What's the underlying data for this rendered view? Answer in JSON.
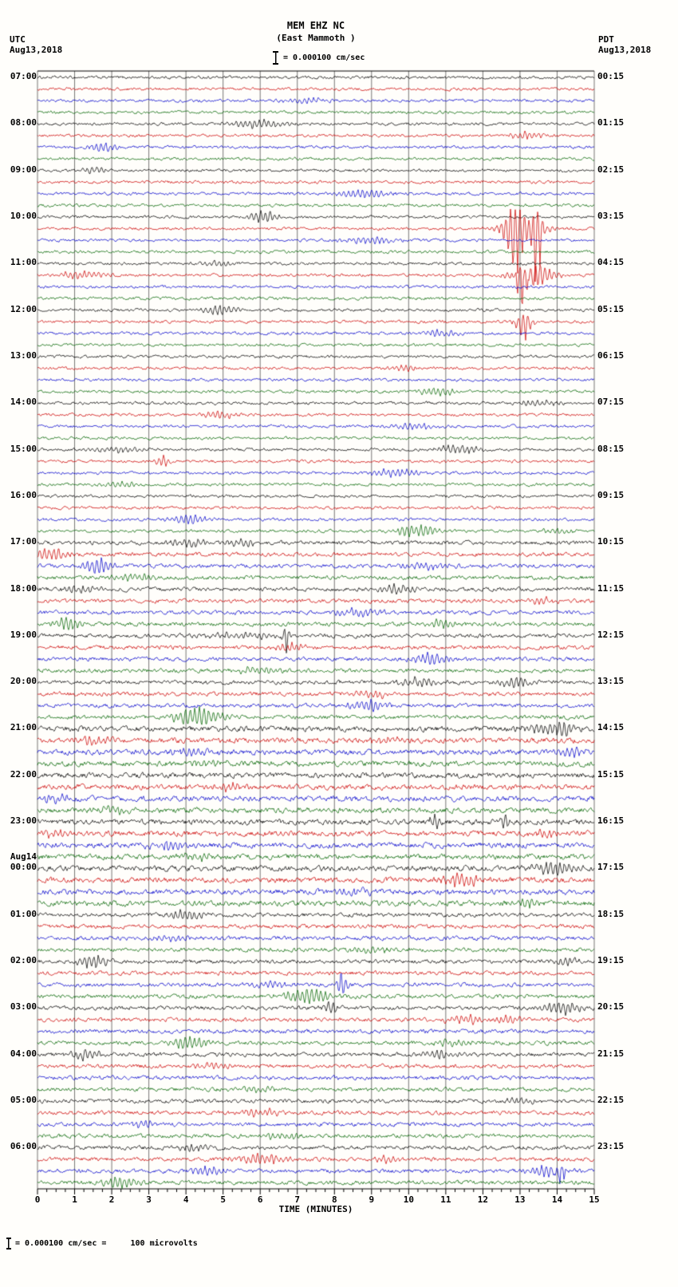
{
  "title": {
    "line1": "MEM EHZ NC",
    "line2": "(East Mammoth )"
  },
  "scale_note": "= 0.000100 cm/sec",
  "headers": {
    "left": {
      "tz": "UTC",
      "date": "Aug13,2018"
    },
    "right": {
      "tz": "PDT",
      "date": "Aug13,2018"
    }
  },
  "x_axis": {
    "label": "TIME (MINUTES)",
    "ticks": [
      "0",
      "1",
      "2",
      "3",
      "4",
      "5",
      "6",
      "7",
      "8",
      "9",
      "10",
      "11",
      "12",
      "13",
      "14",
      "15"
    ]
  },
  "footer": {
    "text": "= 0.000100 cm/sec =     100 microvolts"
  },
  "chart_data": {
    "type": "line",
    "kind": "seismogram-helicorder",
    "station": "MEM",
    "channel": "EHZ",
    "network": "NC",
    "site_name": "East Mammoth",
    "minutes_per_line": 15,
    "x_range_minutes": [
      0,
      15
    ],
    "rows": 96,
    "trace_colors_cycle": [
      "#000000",
      "#cc0000",
      "#0000cc",
      "#006600"
    ],
    "grid_color": "#3c3c3c",
    "utc_hour_labels": [
      "07:00",
      "08:00",
      "09:00",
      "10:00",
      "11:00",
      "12:00",
      "13:00",
      "14:00",
      "15:00",
      "16:00",
      "17:00",
      "18:00",
      "19:00",
      "20:00",
      "21:00",
      "22:00",
      "23:00",
      "00:00",
      "01:00",
      "02:00",
      "03:00",
      "04:00",
      "05:00",
      "06:00"
    ],
    "pdt_labels": [
      "00:15",
      "01:15",
      "02:15",
      "03:15",
      "04:15",
      "05:15",
      "06:15",
      "07:15",
      "08:15",
      "09:15",
      "10:15",
      "11:15",
      "12:15",
      "13:15",
      "14:15",
      "15:15",
      "16:15",
      "17:15",
      "18:15",
      "19:15",
      "20:15",
      "21:15",
      "22:15",
      "23:15"
    ],
    "date_change": {
      "label": "Aug14",
      "hour_index": 17
    },
    "noise_profile": [
      {
        "from": 0,
        "to": 39,
        "amp": 1.1
      },
      {
        "from": 40,
        "to": 55,
        "amp": 1.5
      },
      {
        "from": 56,
        "to": 71,
        "amp": 2.0
      },
      {
        "from": 72,
        "to": 95,
        "amp": 1.5
      }
    ],
    "events": [
      {
        "row": 2,
        "m": 7.2,
        "w": 0.4,
        "a": 4
      },
      {
        "row": 4,
        "m": 5.9,
        "w": 0.5,
        "a": 6
      },
      {
        "row": 5,
        "m": 13.2,
        "w": 0.35,
        "a": 5
      },
      {
        "row": 6,
        "m": 1.8,
        "w": 0.3,
        "a": 6
      },
      {
        "row": 8,
        "m": 1.6,
        "w": 0.3,
        "a": 4
      },
      {
        "row": 10,
        "m": 8.8,
        "w": 0.5,
        "a": 5
      },
      {
        "row": 12,
        "m": 6.1,
        "w": 0.25,
        "a": 9
      },
      {
        "row": 13,
        "m": 12.85,
        "w": 0.15,
        "a": 62
      },
      {
        "row": 13,
        "m": 13.45,
        "w": 0.1,
        "a": 78
      },
      {
        "row": 13,
        "m": 13.1,
        "w": 0.5,
        "a": 12
      },
      {
        "row": 14,
        "m": 8.9,
        "w": 0.5,
        "a": 5
      },
      {
        "row": 16,
        "m": 4.8,
        "w": 0.3,
        "a": 4
      },
      {
        "row": 17,
        "m": 1.2,
        "w": 0.5,
        "a": 5
      },
      {
        "row": 17,
        "m": 13.05,
        "w": 0.12,
        "a": 60
      },
      {
        "row": 17,
        "m": 13.35,
        "w": 0.4,
        "a": 16
      },
      {
        "row": 20,
        "m": 4.9,
        "w": 0.3,
        "a": 7
      },
      {
        "row": 21,
        "m": 13.1,
        "w": 0.15,
        "a": 26
      },
      {
        "row": 22,
        "m": 10.8,
        "w": 0.4,
        "a": 4
      },
      {
        "row": 25,
        "m": 9.9,
        "w": 0.3,
        "a": 4
      },
      {
        "row": 27,
        "m": 10.8,
        "w": 0.4,
        "a": 5
      },
      {
        "row": 28,
        "m": 13.5,
        "w": 0.4,
        "a": 4
      },
      {
        "row": 29,
        "m": 4.9,
        "w": 0.35,
        "a": 5
      },
      {
        "row": 30,
        "m": 10.1,
        "w": 0.5,
        "a": 4
      },
      {
        "row": 32,
        "m": 2.1,
        "w": 0.5,
        "a": 4
      },
      {
        "row": 32,
        "m": 11.3,
        "w": 0.4,
        "a": 6
      },
      {
        "row": 33,
        "m": 3.4,
        "w": 0.15,
        "a": 7
      },
      {
        "row": 34,
        "m": 9.6,
        "w": 0.5,
        "a": 5
      },
      {
        "row": 35,
        "m": 2.2,
        "w": 0.4,
        "a": 4
      },
      {
        "row": 38,
        "m": 4.1,
        "w": 0.4,
        "a": 6
      },
      {
        "row": 39,
        "m": 10.2,
        "w": 0.4,
        "a": 8
      },
      {
        "row": 39,
        "m": 14.0,
        "w": 0.3,
        "a": 4
      },
      {
        "row": 40,
        "m": 4.1,
        "w": 0.4,
        "a": 5
      },
      {
        "row": 40,
        "m": 5.5,
        "w": 0.3,
        "a": 5
      },
      {
        "row": 41,
        "m": 0.35,
        "w": 0.3,
        "a": 8
      },
      {
        "row": 42,
        "m": 1.65,
        "w": 0.25,
        "a": 11
      },
      {
        "row": 42,
        "m": 10.4,
        "w": 0.5,
        "a": 4
      },
      {
        "row": 43,
        "m": 2.7,
        "w": 0.4,
        "a": 5
      },
      {
        "row": 44,
        "m": 1.2,
        "w": 0.3,
        "a": 6
      },
      {
        "row": 44,
        "m": 9.7,
        "w": 0.3,
        "a": 6
      },
      {
        "row": 45,
        "m": 13.7,
        "w": 0.4,
        "a": 4
      },
      {
        "row": 46,
        "m": 8.6,
        "w": 0.5,
        "a": 5
      },
      {
        "row": 47,
        "m": 0.8,
        "w": 0.25,
        "a": 9
      },
      {
        "row": 47,
        "m": 10.9,
        "w": 0.3,
        "a": 6
      },
      {
        "row": 48,
        "m": 5.4,
        "w": 0.8,
        "a": 4
      },
      {
        "row": 48,
        "m": 6.7,
        "w": 0.07,
        "a": 28
      },
      {
        "row": 49,
        "m": 6.8,
        "w": 0.3,
        "a": 5
      },
      {
        "row": 50,
        "m": 10.6,
        "w": 0.4,
        "a": 7
      },
      {
        "row": 51,
        "m": 5.9,
        "w": 0.4,
        "a": 5
      },
      {
        "row": 52,
        "m": 10.3,
        "w": 0.4,
        "a": 6
      },
      {
        "row": 52,
        "m": 12.9,
        "w": 0.3,
        "a": 7
      },
      {
        "row": 53,
        "m": 9.0,
        "w": 0.4,
        "a": 5
      },
      {
        "row": 54,
        "m": 8.9,
        "w": 0.35,
        "a": 8
      },
      {
        "row": 55,
        "m": 4.3,
        "w": 0.45,
        "a": 13
      },
      {
        "row": 56,
        "m": 13.4,
        "w": 0.3,
        "a": 5
      },
      {
        "row": 56,
        "m": 14.15,
        "w": 0.25,
        "a": 11
      },
      {
        "row": 57,
        "m": 1.5,
        "w": 0.3,
        "a": 6
      },
      {
        "row": 57,
        "m": 9.3,
        "w": 0.35,
        "a": 5
      },
      {
        "row": 58,
        "m": 4.2,
        "w": 0.4,
        "a": 5
      },
      {
        "row": 58,
        "m": 14.4,
        "w": 0.25,
        "a": 6
      },
      {
        "row": 59,
        "m": 4.5,
        "w": 0.4,
        "a": 4
      },
      {
        "row": 61,
        "m": 5.2,
        "w": 0.3,
        "a": 5
      },
      {
        "row": 62,
        "m": 0.5,
        "w": 0.3,
        "a": 6
      },
      {
        "row": 63,
        "m": 2.0,
        "w": 0.4,
        "a": 4
      },
      {
        "row": 64,
        "m": 10.7,
        "w": 0.08,
        "a": 14
      },
      {
        "row": 64,
        "m": 12.6,
        "w": 0.08,
        "a": 12
      },
      {
        "row": 65,
        "m": 0.5,
        "w": 0.3,
        "a": 5
      },
      {
        "row": 65,
        "m": 13.8,
        "w": 0.3,
        "a": 5
      },
      {
        "row": 66,
        "m": 3.5,
        "w": 0.3,
        "a": 8
      },
      {
        "row": 67,
        "m": 4.3,
        "w": 0.35,
        "a": 5
      },
      {
        "row": 68,
        "m": 13.9,
        "w": 0.4,
        "a": 9
      },
      {
        "row": 69,
        "m": 11.4,
        "w": 0.35,
        "a": 9
      },
      {
        "row": 70,
        "m": 8.5,
        "w": 0.4,
        "a": 4
      },
      {
        "row": 71,
        "m": 13.2,
        "w": 0.3,
        "a": 5
      },
      {
        "row": 72,
        "m": 4.0,
        "w": 0.3,
        "a": 7
      },
      {
        "row": 74,
        "m": 3.6,
        "w": 0.4,
        "a": 4
      },
      {
        "row": 75,
        "m": 9.0,
        "w": 0.4,
        "a": 4
      },
      {
        "row": 76,
        "m": 1.5,
        "w": 0.25,
        "a": 11
      },
      {
        "row": 76,
        "m": 14.2,
        "w": 0.3,
        "a": 5
      },
      {
        "row": 78,
        "m": 6.3,
        "w": 0.4,
        "a": 4
      },
      {
        "row": 78,
        "m": 8.2,
        "w": 0.1,
        "a": 18
      },
      {
        "row": 79,
        "m": 7.3,
        "w": 0.45,
        "a": 11
      },
      {
        "row": 80,
        "m": 7.9,
        "w": 0.15,
        "a": 7
      },
      {
        "row": 80,
        "m": 14.1,
        "w": 0.35,
        "a": 9
      },
      {
        "row": 81,
        "m": 11.5,
        "w": 0.35,
        "a": 6
      },
      {
        "row": 81,
        "m": 12.7,
        "w": 0.3,
        "a": 5
      },
      {
        "row": 83,
        "m": 4.1,
        "w": 0.35,
        "a": 9
      },
      {
        "row": 83,
        "m": 11.1,
        "w": 0.35,
        "a": 5
      },
      {
        "row": 84,
        "m": 1.3,
        "w": 0.3,
        "a": 6
      },
      {
        "row": 84,
        "m": 10.9,
        "w": 0.4,
        "a": 5
      },
      {
        "row": 85,
        "m": 4.6,
        "w": 0.4,
        "a": 4
      },
      {
        "row": 87,
        "m": 5.9,
        "w": 0.4,
        "a": 4
      },
      {
        "row": 88,
        "m": 13.0,
        "w": 0.3,
        "a": 4
      },
      {
        "row": 89,
        "m": 6.0,
        "w": 0.35,
        "a": 5
      },
      {
        "row": 90,
        "m": 2.8,
        "w": 0.3,
        "a": 5
      },
      {
        "row": 91,
        "m": 6.5,
        "w": 0.4,
        "a": 4
      },
      {
        "row": 92,
        "m": 4.2,
        "w": 0.3,
        "a": 5
      },
      {
        "row": 93,
        "m": 6.0,
        "w": 0.5,
        "a": 7
      },
      {
        "row": 93,
        "m": 9.4,
        "w": 0.3,
        "a": 5
      },
      {
        "row": 94,
        "m": 4.6,
        "w": 0.3,
        "a": 6
      },
      {
        "row": 94,
        "m": 13.8,
        "w": 0.4,
        "a": 8
      },
      {
        "row": 94,
        "m": 14.1,
        "w": 0.12,
        "a": 24
      },
      {
        "row": 95,
        "m": 2.2,
        "w": 0.35,
        "a": 7
      }
    ]
  }
}
